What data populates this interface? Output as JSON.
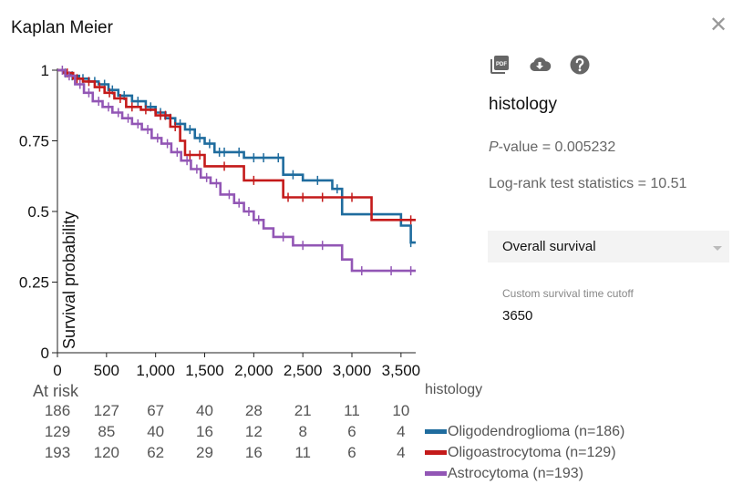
{
  "header": {
    "title": "Kaplan Meier",
    "close_icon": "close-icon"
  },
  "toolbar": {
    "icons": [
      "pdf-icon",
      "cloud-download-icon",
      "help-icon"
    ],
    "pdf_label": "PDF"
  },
  "side": {
    "heading": "histology",
    "pvalue_prefix": "P",
    "pvalue_rest": "-value = 0.005232",
    "logrank": "Log-rank test statistics = 10.51",
    "survival_type": "Overall survival",
    "cutoff_label": "Custom survival time cutoff",
    "cutoff_value": "3650"
  },
  "chart_data": {
    "type": "line",
    "step": true,
    "title": "",
    "xlabel": "",
    "ylabel": "Survival probability",
    "xlim": [
      0,
      3650
    ],
    "ylim": [
      0,
      1
    ],
    "x_ticks": [
      0,
      500,
      1000,
      1500,
      2000,
      2500,
      3000,
      3500
    ],
    "x_tick_labels": [
      "0",
      "500",
      "1,000",
      "1,500",
      "2,000",
      "2,500",
      "3,000",
      "3,500"
    ],
    "y_ticks": [
      0,
      0.25,
      0.5,
      0.75,
      1
    ],
    "y_tick_labels": [
      "0",
      "0.25",
      "0.5",
      "0.75",
      "1"
    ],
    "grid": false,
    "legend_title": "histology",
    "legend_position": "bottom-right",
    "series": [
      {
        "name": "Oligodendroglioma (n=186)",
        "color": "#1f6c9e",
        "x": [
          0,
          60,
          130,
          220,
          320,
          420,
          520,
          620,
          760,
          900,
          1000,
          1100,
          1200,
          1300,
          1400,
          1500,
          1600,
          1800,
          1900,
          2200,
          2300,
          2300,
          2500,
          2800,
          2900,
          3500,
          3600,
          3650
        ],
        "y": [
          1,
          0.99,
          0.98,
          0.97,
          0.96,
          0.95,
          0.93,
          0.91,
          0.89,
          0.87,
          0.85,
          0.83,
          0.81,
          0.79,
          0.76,
          0.74,
          0.71,
          0.71,
          0.69,
          0.69,
          0.67,
          0.63,
          0.61,
          0.58,
          0.49,
          0.45,
          0.39,
          0.39
        ],
        "censored_x": [
          80,
          150,
          260,
          380,
          480,
          560,
          680,
          820,
          950,
          1050,
          1150,
          1250,
          1350,
          1450,
          1550,
          1650,
          1700,
          1850,
          2000,
          2100,
          2250,
          2400,
          2650,
          2850,
          3600
        ]
      },
      {
        "name": "Oligoastrocytoma (n=129)",
        "color": "#c41a1a",
        "x": [
          0,
          70,
          160,
          260,
          380,
          480,
          580,
          700,
          850,
          1000,
          1150,
          1250,
          1300,
          1500,
          1900,
          2300,
          2900,
          3200,
          3650
        ],
        "y": [
          1,
          0.99,
          0.97,
          0.96,
          0.94,
          0.92,
          0.9,
          0.87,
          0.86,
          0.84,
          0.8,
          0.75,
          0.7,
          0.66,
          0.61,
          0.55,
          0.55,
          0.47,
          0.47
        ],
        "censored_x": [
          100,
          200,
          320,
          430,
          530,
          640,
          760,
          900,
          1050,
          1100,
          1200,
          1350,
          1450,
          1700,
          2000,
          2350,
          2500,
          2700,
          3000,
          3600
        ]
      },
      {
        "name": "Astrocytoma (n=193)",
        "color": "#9256b5",
        "x": [
          0,
          80,
          180,
          270,
          360,
          460,
          560,
          660,
          760,
          860,
          960,
          1060,
          1160,
          1260,
          1360,
          1460,
          1560,
          1660,
          1800,
          1900,
          2000,
          2100,
          2200,
          2400,
          2900,
          3000,
          3650
        ],
        "y": [
          1,
          0.98,
          0.95,
          0.92,
          0.89,
          0.87,
          0.85,
          0.83,
          0.81,
          0.79,
          0.76,
          0.74,
          0.71,
          0.68,
          0.65,
          0.62,
          0.6,
          0.56,
          0.53,
          0.5,
          0.47,
          0.44,
          0.41,
          0.38,
          0.33,
          0.29,
          0.29
        ],
        "censored_x": [
          50,
          120,
          230,
          320,
          420,
          520,
          620,
          720,
          820,
          920,
          1020,
          1120,
          1220,
          1320,
          1420,
          1520,
          1620,
          1750,
          1850,
          1950,
          2050,
          2300,
          2500,
          2700,
          3100,
          3400,
          3600
        ]
      }
    ]
  },
  "at_risk": {
    "label": "At risk",
    "rows": [
      [
        "186",
        "127",
        "67",
        "40",
        "28",
        "21",
        "11",
        "10"
      ],
      [
        "129",
        "85",
        "40",
        "16",
        "12",
        "8",
        "6",
        "4"
      ],
      [
        "193",
        "120",
        "62",
        "29",
        "16",
        "11",
        "6",
        "4"
      ]
    ]
  }
}
